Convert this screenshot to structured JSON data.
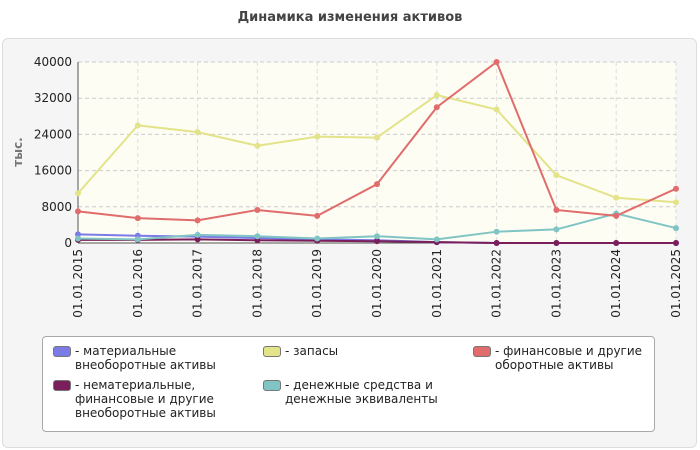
{
  "chart_data": {
    "type": "line",
    "title": "Динамика изменения активов",
    "y_label": "тыс.",
    "categories": [
      "01.01.2015",
      "01.01.2016",
      "01.01.2017",
      "01.01.2018",
      "01.01.2019",
      "01.01.2020",
      "01.01.2021",
      "01.01.2022",
      "01.01.2023",
      "01.01.2024",
      "01.01.2025"
    ],
    "series": [
      {
        "name": "- материальные внеоборотные активы",
        "color": "#7b7be8",
        "values": [
          1900,
          1600,
          1400,
          1100,
          800,
          600,
          200,
          0,
          0,
          0,
          0
        ]
      },
      {
        "name": "- нематериальные, финансовые и другие внеоборотные активы",
        "color": "#7a1f5c",
        "values": [
          700,
          700,
          800,
          600,
          500,
          400,
          200,
          0,
          0,
          0,
          0
        ]
      },
      {
        "name": "- запасы",
        "color": "#e3e38a",
        "values": [
          11000,
          26000,
          24500,
          21500,
          23500,
          23300,
          32700,
          29500,
          15000,
          10000,
          9000
        ]
      },
      {
        "name": "- денежные средства и денежные эквиваленты",
        "color": "#80c4c4",
        "values": [
          1000,
          800,
          1800,
          1500,
          1000,
          1500,
          800,
          2500,
          3000,
          6500,
          3300
        ]
      },
      {
        "name": "- финансовые и другие оборотные активы",
        "color": "#e06c6c",
        "values": [
          7000,
          5500,
          5000,
          7300,
          6000,
          13000,
          30000,
          40000,
          7300,
          6000,
          12000
        ]
      }
    ],
    "ylim": [
      0,
      40000
    ],
    "yticks": [
      0,
      8000,
      16000,
      24000,
      32000,
      40000
    ],
    "grid": true
  }
}
